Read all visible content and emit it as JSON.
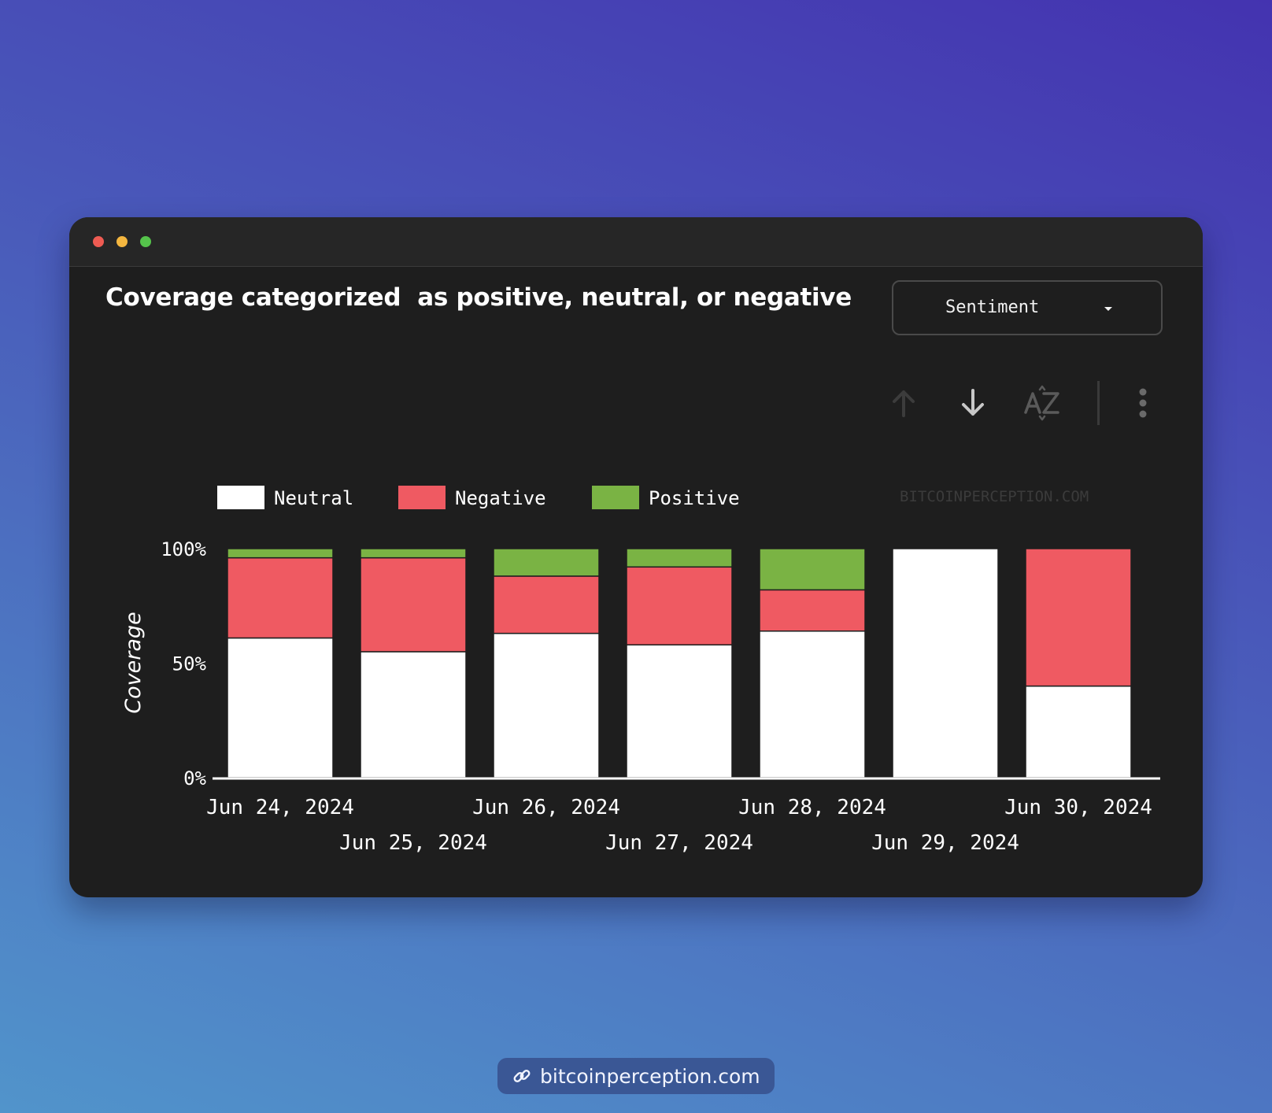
{
  "page_title": "Coverage categorized  as positive, neutral, or negative",
  "dropdown": {
    "selected": "Sentiment"
  },
  "toolbar": {
    "icons": [
      "arrow-up-icon",
      "arrow-down-icon",
      "sort-az-icon",
      "more-vertical-icon"
    ]
  },
  "watermark": "BITCOINPERCEPTION.COM",
  "footer": {
    "link_text": "bitcoinperception.com",
    "icon": "link-icon"
  },
  "colors": {
    "Neutral": "#ffffff",
    "Negative": "#ef5a62",
    "Positive": "#7ab344",
    "window_bg": "#1e1e1e",
    "axis_text": "#ffffff"
  },
  "chart_data": {
    "type": "bar",
    "stacked": true,
    "ylabel": "Coverage",
    "xlabel": "",
    "ylim": [
      0,
      100
    ],
    "y_ticks": [
      "0%",
      "50%",
      "100%"
    ],
    "legend_position": "top-left",
    "categories": [
      "Jun 24, 2024",
      "Jun 25, 2024",
      "Jun 26, 2024",
      "Jun 27, 2024",
      "Jun 28, 2024",
      "Jun 29, 2024",
      "Jun 30, 2024"
    ],
    "series": [
      {
        "name": "Neutral",
        "values": [
          61,
          55,
          63,
          58,
          64,
          100,
          40
        ]
      },
      {
        "name": "Negative",
        "values": [
          35,
          41,
          25,
          34,
          18,
          0,
          60
        ]
      },
      {
        "name": "Positive",
        "values": [
          4,
          4,
          12,
          8,
          18,
          0,
          0
        ]
      }
    ]
  }
}
